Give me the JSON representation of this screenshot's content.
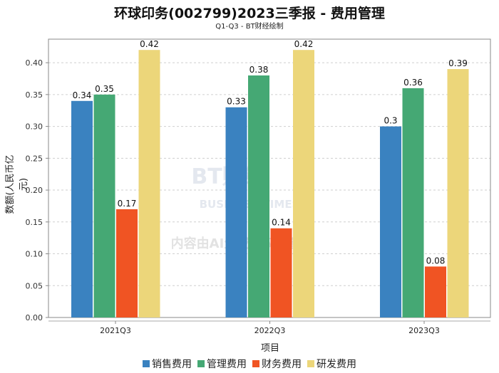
{
  "chart_data": {
    "type": "bar",
    "title": "环球印务(002799)2023三季报 - 费用管理",
    "subtitle": "Q1-Q3 - BT财经绘制",
    "xlabel": "项目",
    "ylabel": "数额(人民币亿元)",
    "categories": [
      "2021Q3",
      "2022Q3",
      "2023Q3"
    ],
    "ylim": [
      0,
      0.437
    ],
    "yticks": [
      "0.00",
      "0.05",
      "0.10",
      "0.15",
      "0.20",
      "0.25",
      "0.30",
      "0.35",
      "0.40"
    ],
    "grid": true,
    "legend_position": "bottom",
    "series": [
      {
        "name": "销售费用",
        "color": "#3a82c0",
        "values": [
          0.34,
          0.33,
          0.3
        ],
        "labels": [
          "0.34",
          "0.33",
          "0.3"
        ]
      },
      {
        "name": "管理费用",
        "color": "#45a874",
        "values": [
          0.35,
          0.38,
          0.36
        ],
        "labels": [
          "0.35",
          "0.38",
          "0.36"
        ]
      },
      {
        "name": "财务费用",
        "color": "#f05423",
        "values": [
          0.17,
          0.14,
          0.08
        ],
        "labels": [
          "0.17",
          "0.14",
          "0.08"
        ]
      },
      {
        "name": "研发费用",
        "color": "#ecd67a",
        "values": [
          0.42,
          0.42,
          0.39
        ],
        "labels": [
          "0.42",
          "0.42",
          "0.39"
        ]
      }
    ]
  },
  "watermark": {
    "brand": "BT财经",
    "brand_en": "BUSINESS TIMES",
    "notice": "内容由AI生成，仅供参考"
  }
}
